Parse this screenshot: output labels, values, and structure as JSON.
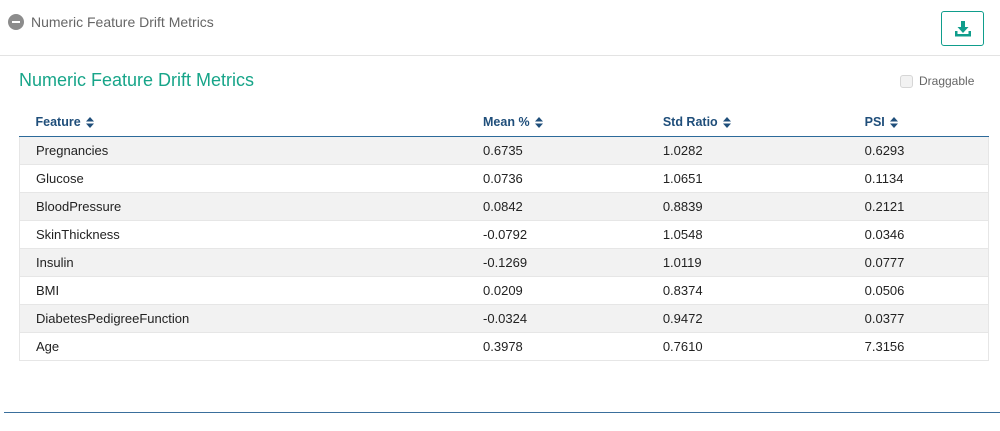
{
  "header": {
    "section_title": "Numeric Feature Drift Metrics",
    "collapse_icon": "minus-circle-icon",
    "download_icon": "download-icon",
    "accent_color": "#17a589"
  },
  "panel": {
    "title": "Numeric Feature Drift Metrics",
    "draggable_label": "Draggable",
    "draggable_checked": false
  },
  "table": {
    "columns": [
      "Feature",
      "Mean %",
      "Std Ratio",
      "PSI"
    ],
    "rows": [
      [
        "Pregnancies",
        "0.6735",
        "1.0282",
        "0.6293"
      ],
      [
        "Glucose",
        "0.0736",
        "1.0651",
        "0.1134"
      ],
      [
        "BloodPressure",
        "0.0842",
        "0.8839",
        "0.2121"
      ],
      [
        "SkinThickness",
        "-0.0792",
        "1.0548",
        "0.0346"
      ],
      [
        "Insulin",
        "-0.1269",
        "1.0119",
        "0.0777"
      ],
      [
        "BMI",
        "0.0209",
        "0.8374",
        "0.0506"
      ],
      [
        "DiabetesPedigreeFunction",
        "-0.0324",
        "0.9472",
        "0.0377"
      ],
      [
        "Age",
        "0.3978",
        "0.7610",
        "7.3156"
      ]
    ]
  }
}
